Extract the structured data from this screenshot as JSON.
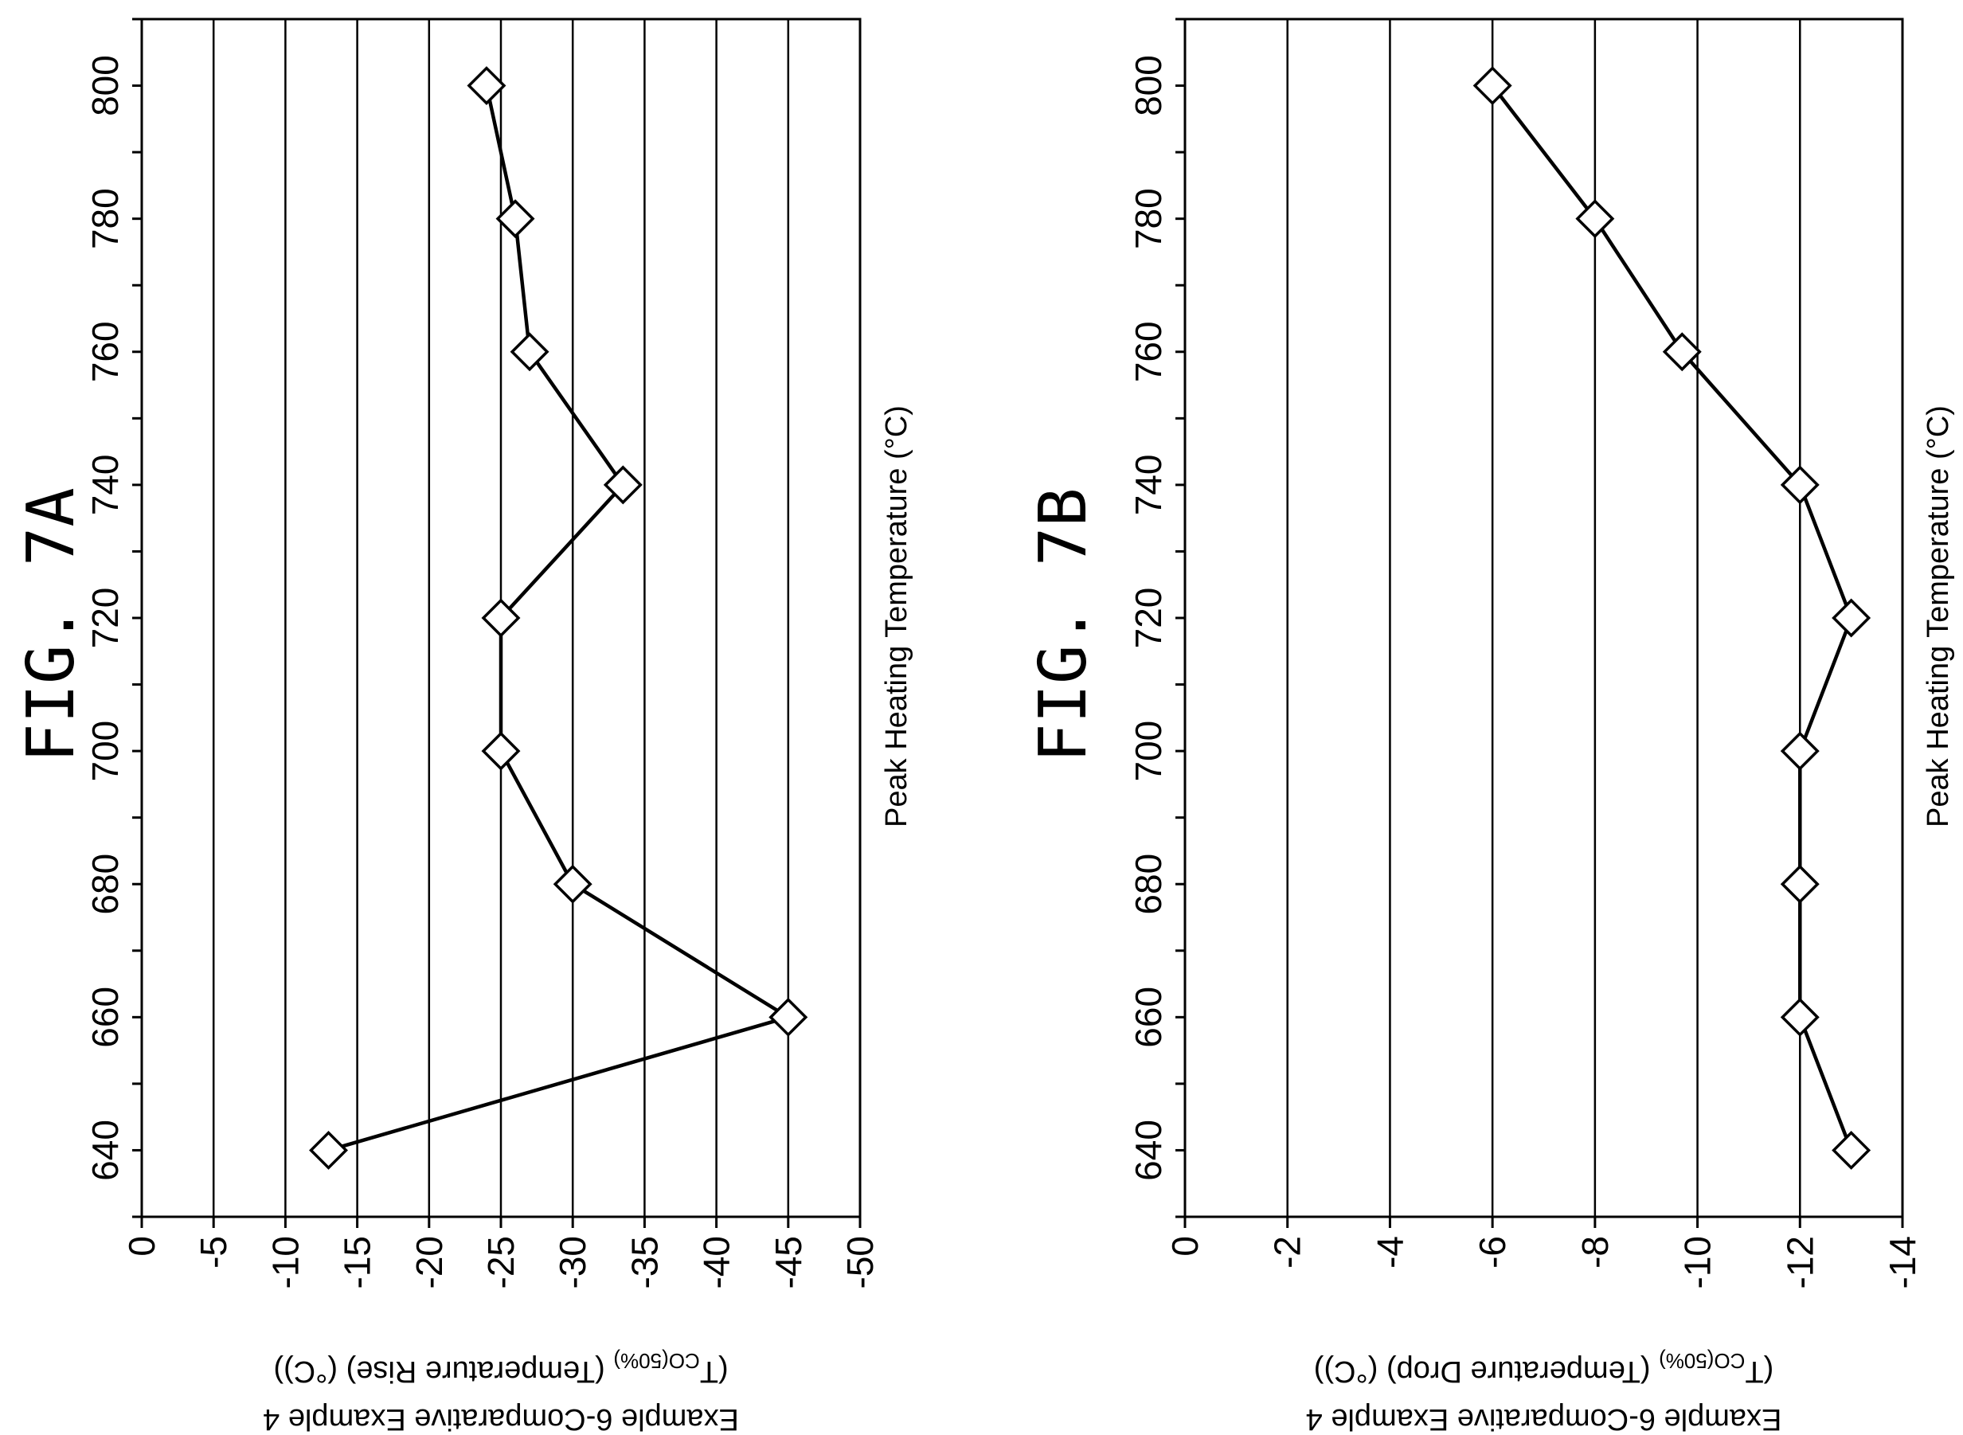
{
  "chart_data": [
    {
      "type": "line",
      "title": "FIG. 7A",
      "xlabel": "Peak Heating Temperature (°C)",
      "ylabel_parts": [
        "Example 6-Comparative Example 4",
        "(T",
        "CO(50%)",
        " (Temperature Rise) (°C))"
      ],
      "x_ticks": [
        "640",
        "660",
        "680",
        "700",
        "720",
        "740",
        "760",
        "780",
        "800"
      ],
      "y_ticks": [
        "0",
        "-5",
        "-10",
        "-15",
        "-20",
        "-25",
        "-30",
        "-35",
        "-40",
        "-45",
        "-50"
      ],
      "xlim": [
        630,
        810
      ],
      "ylim": [
        0,
        -50
      ],
      "grid": "horizontal",
      "series": [
        {
          "x": [
            640,
            660,
            680,
            700,
            720,
            740,
            760,
            780,
            800
          ],
          "y": [
            -13,
            -45,
            -30,
            -25,
            -25,
            -33.5,
            -27,
            -26,
            -24
          ]
        }
      ]
    },
    {
      "type": "line",
      "title": "FIG. 7B",
      "xlabel": "Peak Heating Temperature (°C)",
      "ylabel_parts": [
        "Example 6-Comparative Example 4",
        "(T",
        "CO(50%)",
        " (Temperature Drop) (°C))"
      ],
      "x_ticks": [
        "640",
        "660",
        "680",
        "700",
        "720",
        "740",
        "760",
        "780",
        "800"
      ],
      "y_ticks": [
        "0",
        "-2",
        "-4",
        "-6",
        "-8",
        "-10",
        "-12",
        "-14"
      ],
      "xlim": [
        630,
        810
      ],
      "ylim": [
        0,
        -14
      ],
      "grid": "horizontal",
      "series": [
        {
          "x": [
            640,
            660,
            680,
            700,
            720,
            740,
            760,
            780,
            800
          ],
          "y": [
            -13,
            -12,
            -12,
            -12,
            -13,
            -12,
            -9.7,
            -8,
            -6
          ]
        }
      ]
    }
  ]
}
